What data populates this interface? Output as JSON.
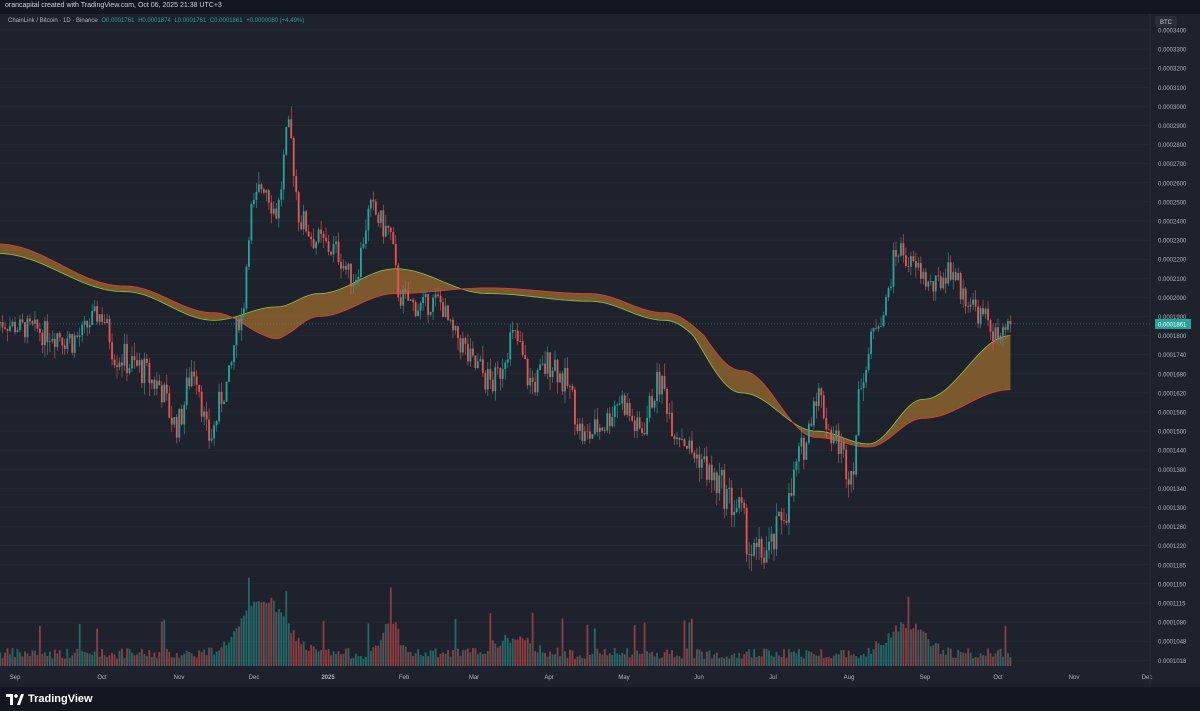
{
  "header": {
    "caption": "orancapital created with TradingView.com, Oct 06, 2025 21:38 UTC+3"
  },
  "legend": {
    "symbol": "ChainLink / Bitcoin · 1D · Binance",
    "open": "O0.0001761",
    "high": "H0.0001874",
    "low": "L0.0001761",
    "close": "C0.0001861",
    "change": "+0.0000080 (+4.49%)"
  },
  "footer": {
    "brand": "TradingView"
  },
  "chart_data": {
    "type": "candlestick",
    "title": "ChainLink / Bitcoin · 1D · Binance",
    "currency_label": "BTC",
    "last_price": "0.0001861",
    "price_scale": "log",
    "y_ticks": [
      "0.0003400",
      "0.0003300",
      "0.0003200",
      "0.0003100",
      "0.0003000",
      "0.0002900",
      "0.0002800",
      "0.0002700",
      "0.0002600",
      "0.0002500",
      "0.0002400",
      "0.0002300",
      "0.0002200",
      "0.0002100",
      "0.0002000",
      "0.0001900",
      "0.0001800",
      "0.0001740",
      "0.0001680",
      "0.0001620",
      "0.0001560",
      "0.0001500",
      "0.0001440",
      "0.0001380",
      "0.0001340",
      "0.0001300",
      "0.0001260",
      "0.0001220",
      "0.0001185",
      "0.0001150",
      "0.0001115",
      "0.0001080",
      "0.0001048",
      "0.0001018"
    ],
    "x_ticks": [
      "Sep",
      "Oct",
      "Nov",
      "Dec",
      "2025",
      "Feb",
      "Mar",
      "Apr",
      "May",
      "Jun",
      "Jul",
      "Aug",
      "Sep",
      "Oct",
      "Nov",
      "Dec"
    ],
    "colors": {
      "up": "#26a69a",
      "down": "#ef5350",
      "band_fill": "#9c6b2e",
      "band_fast": "#8bc34a",
      "band_slow": "#e53935",
      "background": "#1e222d",
      "grid": "#2a2e39"
    },
    "price_path": [
      [
        "2024-08-25",
        0.000187
      ],
      [
        "2024-09-05",
        0.000184
      ],
      [
        "2024-09-15",
        0.000182
      ],
      [
        "2024-09-25",
        0.000179
      ],
      [
        "2024-10-05",
        0.000191
      ],
      [
        "2024-10-12",
        0.000174
      ],
      [
        "2024-10-20",
        0.00017
      ],
      [
        "2024-10-28",
        0.000165
      ],
      [
        "2024-11-05",
        0.000152
      ],
      [
        "2024-11-12",
        0.00017
      ],
      [
        "2024-11-18",
        0.000148
      ],
      [
        "2024-11-25",
        0.000164
      ],
      [
        "2024-12-01",
        0.00019
      ],
      [
        "2024-12-05",
        0.000245
      ],
      [
        "2024-12-10",
        0.00026
      ],
      [
        "2024-12-15",
        0.000245
      ],
      [
        "2024-12-20",
        0.000285
      ],
      [
        "2024-12-25",
        0.00024
      ],
      [
        "2024-12-31",
        0.00023
      ],
      [
        "2025-01-07",
        0.000225
      ],
      [
        "2025-01-15",
        0.00021
      ],
      [
        "2025-01-22",
        0.000245
      ],
      [
        "2025-01-29",
        0.000235
      ],
      [
        "2025-02-03",
        0.0002
      ],
      [
        "2025-02-10",
        0.000195
      ],
      [
        "2025-02-18",
        0.000198
      ],
      [
        "2025-02-25",
        0.00018
      ],
      [
        "2025-03-05",
        0.00017
      ],
      [
        "2025-03-12",
        0.000165
      ],
      [
        "2025-03-20",
        0.00018
      ],
      [
        "2025-03-28",
        0.000165
      ],
      [
        "2025-04-05",
        0.000172
      ],
      [
        "2025-04-10",
        0.000165
      ],
      [
        "2025-04-18",
        0.000148
      ],
      [
        "2025-04-25",
        0.000152
      ],
      [
        "2025-05-02",
        0.00016
      ],
      [
        "2025-05-10",
        0.00015
      ],
      [
        "2025-05-18",
        0.000165
      ],
      [
        "2025-05-25",
        0.00015
      ],
      [
        "2025-06-02",
        0.000142
      ],
      [
        "2025-06-10",
        0.000135
      ],
      [
        "2025-06-18",
        0.00013
      ],
      [
        "2025-06-25",
        0.00012
      ],
      [
        "2025-07-01",
        0.000121
      ],
      [
        "2025-07-08",
        0.00013
      ],
      [
        "2025-07-15",
        0.000145
      ],
      [
        "2025-07-20",
        0.000162
      ],
      [
        "2025-07-27",
        0.000148
      ],
      [
        "2025-08-03",
        0.000138
      ],
      [
        "2025-08-08",
        0.00017
      ],
      [
        "2025-08-15",
        0.00019
      ],
      [
        "2025-08-22",
        0.000225
      ],
      [
        "2025-08-29",
        0.000215
      ],
      [
        "2025-09-05",
        0.000205
      ],
      [
        "2025-09-12",
        0.000215
      ],
      [
        "2025-09-18",
        0.0002
      ],
      [
        "2025-09-25",
        0.00019
      ],
      [
        "2025-10-02",
        0.000178
      ],
      [
        "2025-10-06",
        0.0001861
      ]
    ],
    "band_fast": [
      [
        "2024-08-25",
        0.000223
      ],
      [
        "2024-10-15",
        0.000203
      ],
      [
        "2024-11-20",
        0.000188
      ],
      [
        "2024-12-15",
        0.000195
      ],
      [
        "2025-01-01",
        0.000202
      ],
      [
        "2025-02-01",
        0.000215
      ],
      [
        "2025-03-10",
        0.000202
      ],
      [
        "2025-04-20",
        0.000198
      ],
      [
        "2025-05-20",
        0.000188
      ],
      [
        "2025-06-20",
        0.000162
      ],
      [
        "2025-07-20",
        0.00015
      ],
      [
        "2025-08-10",
        0.000146
      ],
      [
        "2025-09-01",
        0.00016
      ],
      [
        "2025-10-06",
        0.00018
      ]
    ],
    "band_slow": [
      [
        "2024-08-25",
        0.000228
      ],
      [
        "2024-10-15",
        0.000206
      ],
      [
        "2024-11-20",
        0.000192
      ],
      [
        "2024-12-15",
        0.000179
      ],
      [
        "2025-01-01",
        0.00019
      ],
      [
        "2025-02-01",
        0.000202
      ],
      [
        "2025-03-10",
        0.000205
      ],
      [
        "2025-04-20",
        0.000202
      ],
      [
        "2025-05-20",
        0.000192
      ],
      [
        "2025-06-20",
        0.000169
      ],
      [
        "2025-07-20",
        0.000148
      ],
      [
        "2025-08-10",
        0.000145
      ],
      [
        "2025-09-01",
        0.000154
      ],
      [
        "2025-10-06",
        0.000163
      ]
    ],
    "volume_profile": "relative daily volume, peaks mid-Dec 2024, late Jan 2025, late Aug 2025"
  }
}
